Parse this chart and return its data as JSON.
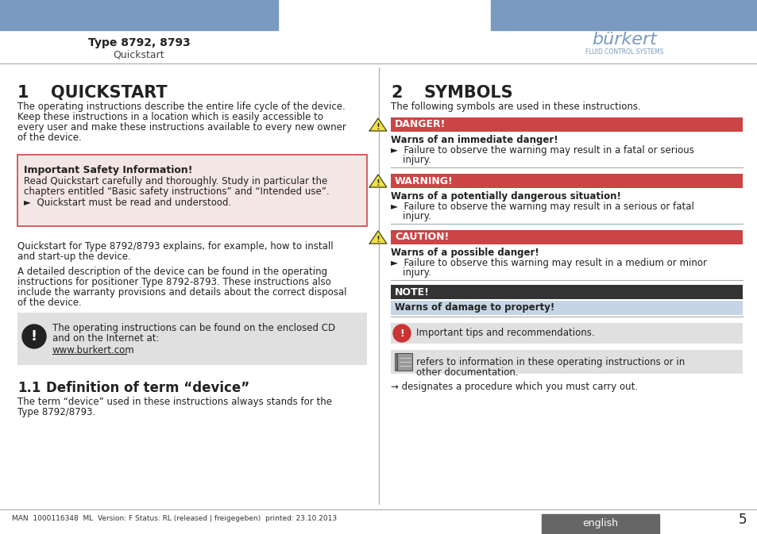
{
  "bg_color": "#ffffff",
  "header_bar_color": "#7a9bbf",
  "header_left_text1": "Type 8792, 8793",
  "header_left_text2": "Quickstart",
  "footer_bar_color": "#666666",
  "footer_text": "MAN  1000116348  ML  Version: F Status: RL (released | freigegeben)  printed: 23.10.2013",
  "footer_lang": "english",
  "footer_page": "5",
  "section1_num": "1",
  "section1_title": "QUICKSTART",
  "section1_para1": "The operating instructions describe the entire life cycle of the device.\nKeep these instructions in a location which is easily accessible to\nevery user and make these instructions available to every new owner\nof the device.",
  "safety_box_bg": "#f5e6e6",
  "safety_box_border": "#cc4444",
  "safety_title": "Important Safety Information!",
  "safety_text1": "Read Quickstart carefully and thoroughly. Study in particular the\nchapters entitled “Basic safety instructions” and “Intended use”.",
  "safety_text2": "►  Quickstart must be read and understood.",
  "section1_para2": "Quickstart for Type 8792/8793 explains, for example, how to install\nand start-up the device.",
  "section1_para3": "A detailed description of the device can be found in the operating\ninstructions for positioner Type 8792-8793. These instructions also\ninclude the warranty provisions and details about the correct disposal\nof the device.",
  "note_box_bg": "#e8e8e8",
  "note_text": "The operating instructions can be found on the enclosed CD\nand on the Internet at:",
  "note_url": "www.burkert.com",
  "section11_num": "1.1",
  "section11_title": "Definition of term “device”",
  "section11_para": "The term “device” used in these instructions always stands for the\nType 8792/8793.",
  "section2_num": "2",
  "section2_title": "SYMBOLS",
  "section2_intro": "The following symbols are used in these instructions.",
  "danger_bar_color": "#cc4444",
  "danger_title": "DANGER!",
  "danger_subtitle": "Warns of an immediate danger!",
  "danger_text": "►  Failure to observe the warning may result in a fatal or serious\n    injury.",
  "warning_bar_color": "#cc4444",
  "warning_title": "WARNING!",
  "warning_subtitle": "Warns of a potentially dangerous situation!",
  "warning_text": "►  Failure to observe the warning may result in a serious or fatal\n    injury.",
  "caution_bar_color": "#cc4444",
  "caution_title": "CAUTION!",
  "caution_subtitle": "Warns of a possible danger!",
  "caution_text": "►  Failure to observe this warning may result in a medium or minor\n    injury.",
  "note_bar_color": "#333333",
  "note_title": "NOTE!",
  "note_subtitle": "Warns of damage to property!",
  "tip_text": "Important tips and recommendations.",
  "ref_text": "refers to information in these operating instructions or in\nother documentation.",
  "arrow_text": "→ designates a procedure which you must carry out.",
  "divider_color": "#aaaaaa",
  "text_color": "#222222",
  "burkert_color": "#7a9bbf"
}
